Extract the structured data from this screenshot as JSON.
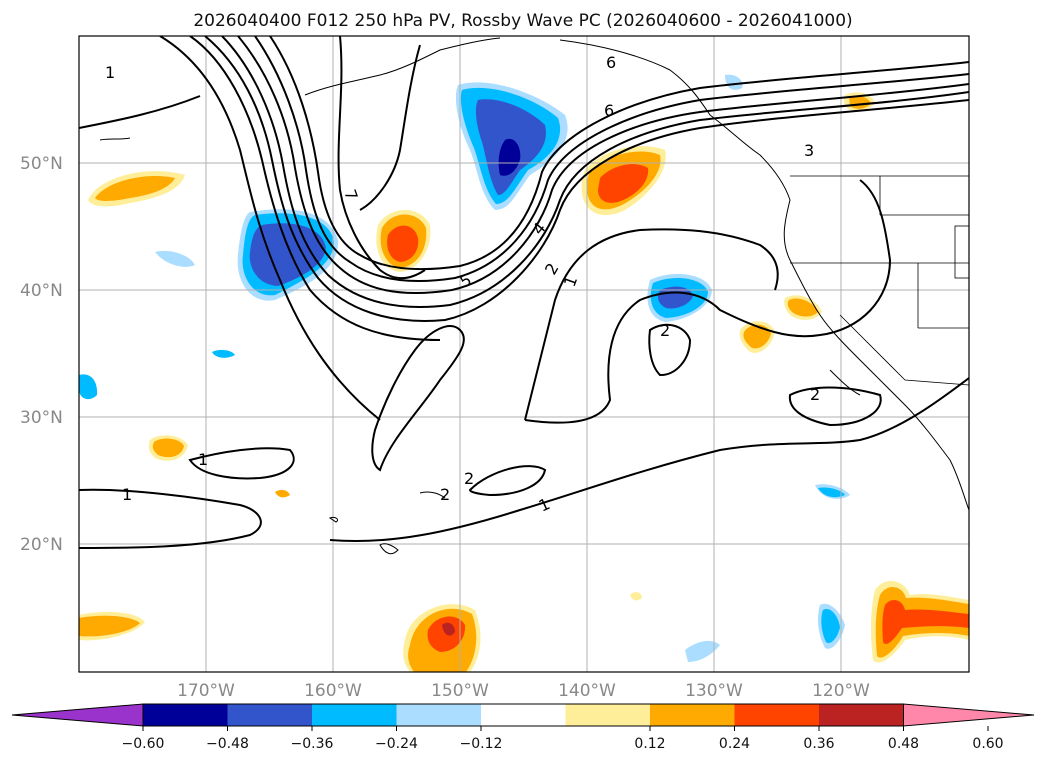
{
  "title": "2026040400 F012 250 hPa PV, Rossby Wave PC (2026040600 - 2026041000)",
  "lat_labels": [
    "50°N",
    "40°N",
    "30°N",
    "20°N"
  ],
  "lon_labels": [
    "170°W",
    "160°W",
    "150°W",
    "140°W",
    "130°W",
    "120°W"
  ],
  "contour_labels": [
    "1",
    "7",
    "6",
    "6",
    "3",
    "5",
    "4",
    "2",
    "1",
    "2",
    "1",
    "1",
    "2",
    "2",
    "1",
    "2"
  ],
  "colorbar": {
    "ticks": [
      "−0.60",
      "−0.48",
      "−0.36",
      "−0.24",
      "−0.12",
      "0.12",
      "0.24",
      "0.36",
      "0.48",
      "0.60"
    ],
    "colors": [
      "#9933cc",
      "#000099",
      "#3355cc",
      "#00bbff",
      "#aaddff",
      "#ffffff",
      "#ffee99",
      "#ffaa00",
      "#ff4400",
      "#bb2222",
      "#ff88aa"
    ]
  }
}
